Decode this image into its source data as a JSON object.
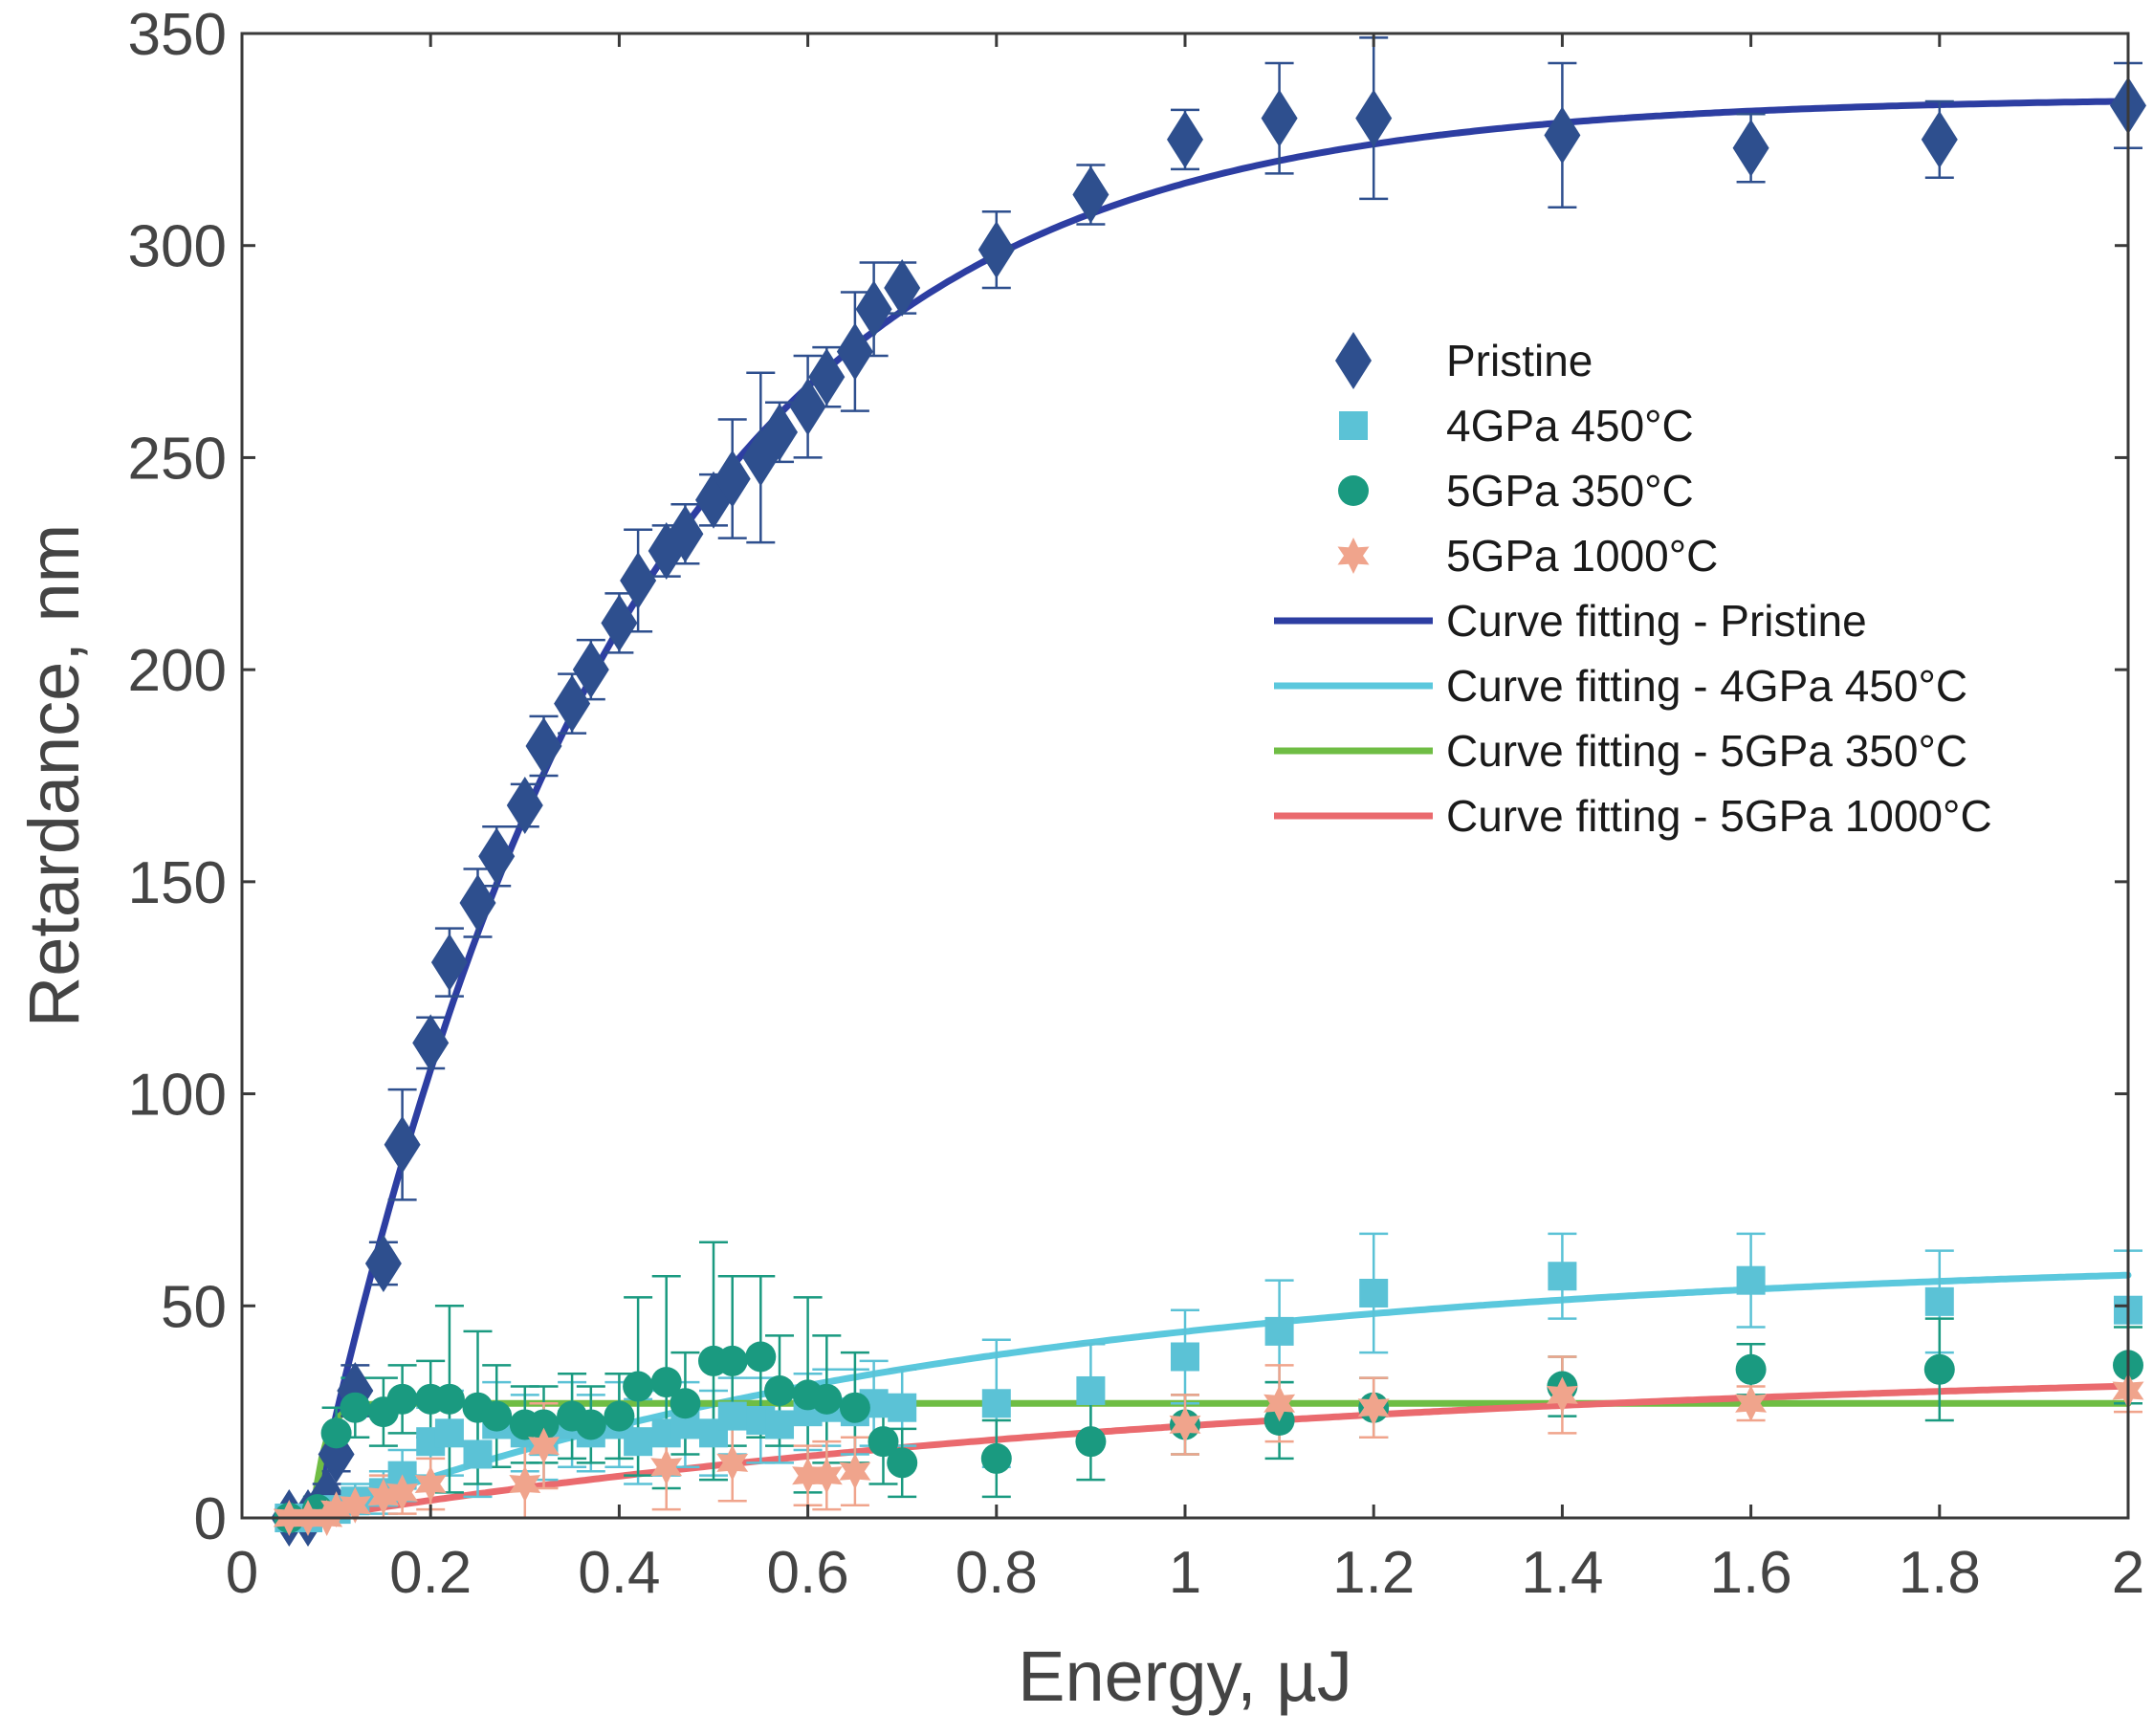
{
  "chart_data": {
    "type": "scatter",
    "title": "",
    "xlabel": "Energy, µJ",
    "ylabel": "Retardance, nm",
    "xlim": [
      0,
      2.0
    ],
    "ylim": [
      0,
      350
    ],
    "xticks": [
      0,
      0.2,
      0.4,
      0.6,
      0.8,
      1,
      1.2,
      1.4,
      1.6,
      1.8,
      2
    ],
    "xtick_labels": [
      "0",
      "0.2",
      "0.4",
      "0.6",
      "0.8",
      "1",
      "1.2",
      "1.4",
      "1.6",
      "1.8",
      "2"
    ],
    "yticks": [
      0,
      50,
      100,
      150,
      200,
      250,
      300,
      350
    ],
    "ytick_labels": [
      "0",
      "50",
      "100",
      "150",
      "200",
      "250",
      "300",
      "350"
    ],
    "grid": false,
    "legend_position": "upper-right (inside)",
    "series": [
      {
        "name": "Pristine",
        "marker": "diamond",
        "color": "#2e4f8e",
        "x": [
          0.05,
          0.07,
          0.09,
          0.1,
          0.12,
          0.15,
          0.17,
          0.2,
          0.22,
          0.25,
          0.27,
          0.3,
          0.32,
          0.35,
          0.37,
          0.4,
          0.42,
          0.45,
          0.47,
          0.5,
          0.52,
          0.55,
          0.57,
          0.6,
          0.62,
          0.65,
          0.67,
          0.7,
          0.8,
          0.9,
          1.0,
          1.1,
          1.2,
          1.4,
          1.6,
          1.8,
          2.0
        ],
        "y": [
          0,
          0,
          5,
          15,
          30,
          60,
          88,
          112,
          131,
          145,
          156,
          168,
          182,
          192,
          200,
          211,
          221,
          228,
          232,
          240,
          245,
          250,
          256,
          262,
          269,
          275,
          285,
          290,
          299,
          312,
          325,
          330,
          330,
          326,
          323,
          325,
          333
        ],
        "err": [
          2,
          2,
          3,
          4,
          6,
          5,
          13,
          6,
          8,
          8,
          7,
          5,
          7,
          7,
          7,
          7,
          12,
          6,
          7,
          6,
          14,
          20,
          7,
          12,
          7,
          14,
          11,
          6,
          9,
          7,
          7,
          13,
          19,
          17,
          8,
          9,
          10
        ]
      },
      {
        "name": "4GPa 450°C",
        "marker": "square",
        "color": "#5bc2d6",
        "x": [
          0.05,
          0.07,
          0.1,
          0.12,
          0.15,
          0.17,
          0.2,
          0.22,
          0.25,
          0.27,
          0.3,
          0.32,
          0.35,
          0.37,
          0.4,
          0.42,
          0.45,
          0.47,
          0.5,
          0.52,
          0.55,
          0.57,
          0.6,
          0.62,
          0.65,
          0.67,
          0.7,
          0.8,
          0.9,
          1.0,
          1.1,
          1.2,
          1.4,
          1.6,
          1.8,
          2.0
        ],
        "y": [
          0,
          0,
          2,
          4,
          6,
          10,
          18,
          20,
          15,
          22,
          20,
          18,
          22,
          20,
          22,
          18,
          20,
          22,
          20,
          24,
          23,
          22,
          25,
          26,
          25,
          27,
          26,
          27,
          30,
          38,
          44,
          53,
          57,
          56,
          51,
          49
        ],
        "err": [
          2,
          2,
          3,
          4,
          5,
          6,
          8,
          10,
          10,
          10,
          9,
          9,
          10,
          9,
          10,
          10,
          10,
          10,
          10,
          9,
          10,
          9,
          9,
          9,
          10,
          10,
          9,
          15,
          11,
          11,
          12,
          14,
          10,
          11,
          12,
          14
        ]
      },
      {
        "name": "5GPa 350°C",
        "marker": "circle",
        "color": "#1a9a80",
        "x": [
          0.05,
          0.08,
          0.1,
          0.12,
          0.15,
          0.17,
          0.2,
          0.22,
          0.25,
          0.27,
          0.3,
          0.32,
          0.35,
          0.37,
          0.4,
          0.42,
          0.45,
          0.47,
          0.5,
          0.52,
          0.55,
          0.57,
          0.6,
          0.62,
          0.65,
          0.68,
          0.7,
          0.8,
          0.9,
          1.0,
          1.1,
          1.2,
          1.4,
          1.6,
          1.8,
          2.0
        ],
        "y": [
          0,
          2,
          20,
          26,
          25,
          28,
          28,
          28,
          26,
          24,
          22,
          22,
          24,
          22,
          24,
          31,
          32,
          27,
          37,
          37,
          38,
          30,
          29,
          28,
          26,
          18,
          13,
          14,
          18,
          22,
          23,
          26,
          31,
          35,
          35,
          36
        ],
        "err": [
          2,
          3,
          6,
          7,
          8,
          8,
          9,
          22,
          18,
          12,
          9,
          9,
          10,
          9,
          10,
          21,
          25,
          12,
          28,
          20,
          19,
          13,
          23,
          15,
          13,
          10,
          8,
          9,
          9,
          7,
          9,
          7,
          7,
          6,
          12,
          9
        ]
      },
      {
        "name": "5GPa 1000°C",
        "marker": "star",
        "color": "#f0a48c",
        "x": [
          0.05,
          0.07,
          0.09,
          0.1,
          0.12,
          0.15,
          0.17,
          0.2,
          0.3,
          0.32,
          0.45,
          0.52,
          0.6,
          0.62,
          0.65,
          1.0,
          1.1,
          1.2,
          1.4,
          1.6,
          2.0
        ],
        "y": [
          0,
          0,
          0,
          2,
          3,
          5,
          6,
          8,
          8,
          17,
          12,
          13,
          10,
          10,
          11,
          22,
          27,
          26,
          29,
          27,
          30
        ],
        "err": [
          2,
          2,
          2,
          3,
          4,
          5,
          5,
          6,
          12,
          10,
          10,
          9,
          7,
          8,
          8,
          7,
          9,
          7,
          9,
          4,
          5
        ]
      },
      {
        "name": "Curve fitting - Pristine",
        "type": "line",
        "color": "#2d3ea2",
        "model": "exp_rise",
        "params": {
          "a": 335,
          "x0": 0.075,
          "tau": 0.33
        }
      },
      {
        "name": "Curve fitting - 4GPa 450°C",
        "type": "line",
        "color": "#5bc8dd",
        "model": "exp_rise",
        "params": {
          "a": 62,
          "x0": 0.075,
          "tau": 0.75
        }
      },
      {
        "name": "Curve fitting - 5GPa 350°C",
        "type": "line",
        "color": "#6fbd44",
        "model": "exp_rise",
        "params": {
          "a": 27,
          "x0": 0.075,
          "tau": 0.013
        }
      },
      {
        "name": "Curve fitting - 5GPa 1000°C",
        "type": "line",
        "color": "#ea6a6e",
        "model": "exp_rise",
        "params": {
          "a": 37,
          "x0": 0.075,
          "tau": 1.05
        }
      }
    ]
  }
}
